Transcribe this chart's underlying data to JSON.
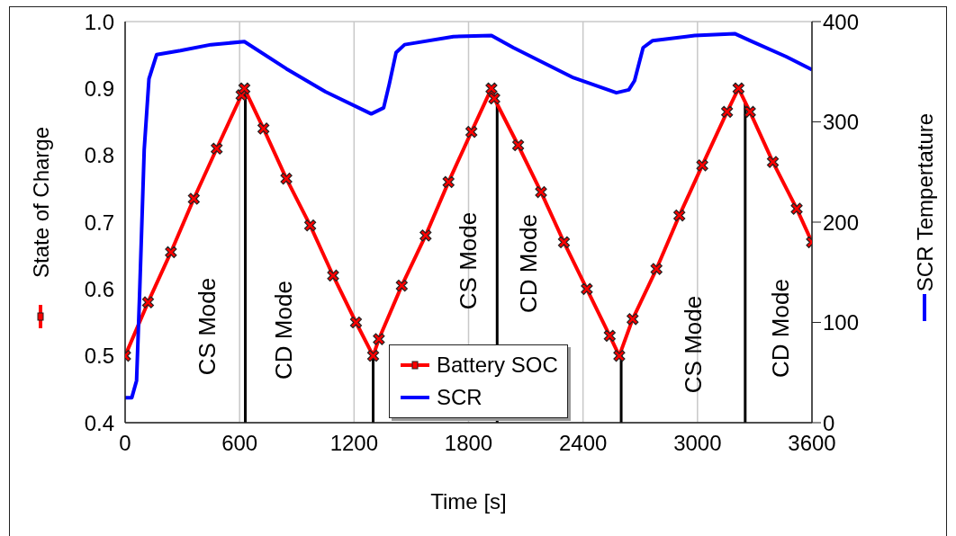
{
  "chart_data": {
    "type": "line",
    "xlabel": "Time [s]",
    "ylabel": "State of Charge",
    "y2label": "SCR Tempertature",
    "xlim": [
      0,
      3600
    ],
    "xticks": [
      0,
      600,
      1200,
      1800,
      2400,
      3000,
      3600
    ],
    "ylim": [
      0.4,
      1.0
    ],
    "yticks": [
      0.4,
      0.5,
      0.6,
      0.7,
      0.8,
      0.9,
      {
        "value": 1.0,
        "label": "1.0"
      }
    ],
    "y2lim": [
      0,
      400
    ],
    "y2ticks": [
      0,
      100,
      200,
      300,
      400
    ],
    "grid": true,
    "legend": "bottom",
    "line_style": "solid",
    "series": [
      {
        "name": "Battery SOC",
        "color": "#ff0000",
        "marker": "cross",
        "x": [
          0,
          120,
          240,
          360,
          480,
          610,
          625,
          725,
          845,
          970,
          1090,
          1210,
          1300,
          1330,
          1450,
          1575,
          1695,
          1815,
          1920,
          1935,
          2060,
          2180,
          2300,
          2420,
          2540,
          2590,
          2660,
          2785,
          2905,
          3025,
          3155,
          3215,
          3275,
          3395,
          3520,
          3600
        ],
        "values": [
          0.5,
          0.58,
          0.655,
          0.735,
          0.81,
          0.89,
          0.9,
          0.84,
          0.765,
          0.695,
          0.62,
          0.55,
          0.5,
          0.525,
          0.605,
          0.68,
          0.76,
          0.835,
          0.9,
          0.885,
          0.815,
          0.745,
          0.67,
          0.6,
          0.53,
          0.5,
          0.555,
          0.63,
          0.71,
          0.785,
          0.865,
          0.9,
          0.865,
          0.79,
          0.72,
          0.67
        ]
      },
      {
        "name": "SCR",
        "color": "#0000ff",
        "axis": "y2",
        "marker": "none",
        "x": [
          0,
          35,
          60,
          75,
          100,
          125,
          165,
          290,
          450,
          625,
          845,
          1050,
          1290,
          1355,
          1385,
          1420,
          1465,
          1720,
          1920,
          2035,
          2350,
          2575,
          2640,
          2670,
          2715,
          2765,
          2985,
          3195,
          3275,
          3465,
          3600
        ],
        "values": [
          25,
          25,
          42,
          123,
          272,
          343,
          367,
          371,
          377,
          380,
          353,
          330,
          308,
          314,
          338,
          369,
          377,
          385,
          386,
          374,
          344,
          329,
          332,
          341,
          374,
          381,
          386,
          388,
          381,
          365,
          352
        ]
      }
    ],
    "ref_lines": [
      {
        "axis": "x",
        "value": 630,
        "color": "#000000"
      },
      {
        "axis": "x",
        "value": 1300,
        "color": "#000000"
      },
      {
        "axis": "x",
        "value": 1950,
        "color": "#000000"
      },
      {
        "axis": "x",
        "value": 2600,
        "color": "#000000"
      },
      {
        "axis": "x",
        "value": 3250,
        "color": "#000000"
      }
    ],
    "annotations": [
      "CS Mode",
      "CD Mode",
      "CS Mode",
      "CD Mode",
      "CS Mode",
      "CD Mode"
    ]
  }
}
